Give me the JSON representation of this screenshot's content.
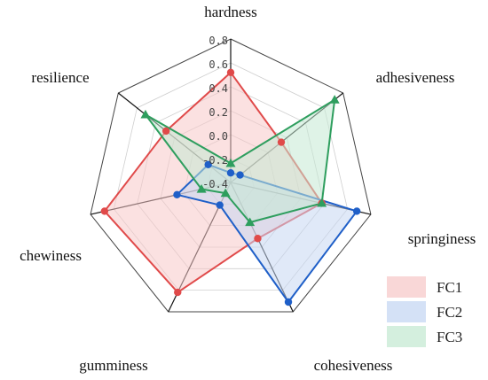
{
  "chart_data": {
    "type": "radar",
    "axes": [
      "hardness",
      "adhesiveness",
      "springiness",
      "cohesiveness",
      "gumminess",
      "chewiness",
      "resilience"
    ],
    "rlim": [
      -0.4,
      0.8
    ],
    "tick_labels": [
      "0.8",
      "0.6",
      "0.4",
      "0.2",
      "0.0",
      "-0.2",
      "-0.4"
    ],
    "grid": true,
    "legend_position": "bottom-right",
    "series": [
      {
        "name": "FC1",
        "color": "#e04a4a",
        "fill": "#f7c9c9",
        "marker": "circle",
        "values": [
          0.52,
          0.14,
          0.38,
          0.12,
          0.62,
          0.68,
          0.29
        ]
      },
      {
        "name": "FC2",
        "color": "#1f5fc8",
        "fill": "#c6d7f3",
        "marker": "circle",
        "values": [
          -0.32,
          -0.3,
          0.68,
          0.71,
          -0.19,
          0.06,
          -0.16
        ]
      },
      {
        "name": "FC3",
        "color": "#2e9e5e",
        "fill": "#c5ead3",
        "marker": "triangle",
        "values": [
          -0.24,
          0.71,
          0.38,
          -0.03,
          -0.3,
          -0.15,
          0.51
        ]
      }
    ]
  }
}
